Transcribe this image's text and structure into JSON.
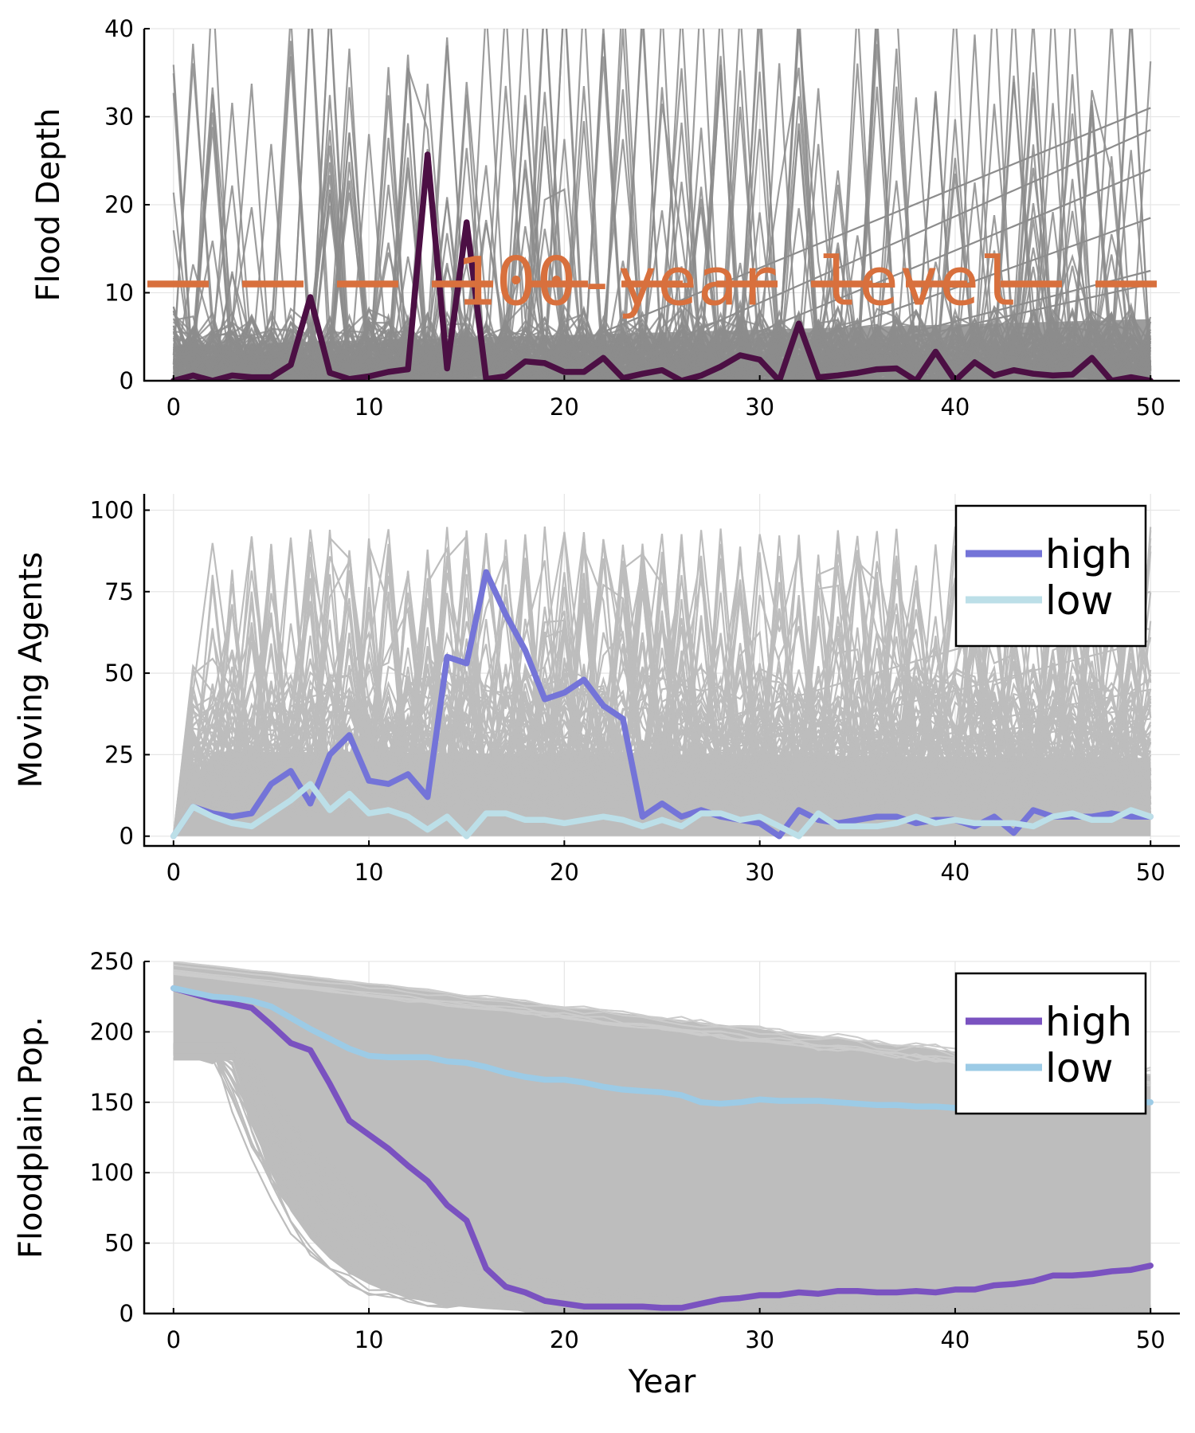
{
  "colors": {
    "ensemble_top": "#8c8c8c",
    "ensemble": "#bdbdbd",
    "flood_highlight": "#4c0f44",
    "threshold": "#d8703d",
    "moving_high": "#7474d8",
    "moving_low": "#bcdfe8",
    "pop_high": "#7a52c0",
    "pop_low": "#9ccbe6",
    "grid": "#e6e6e6"
  },
  "chart_data": [
    {
      "type": "line",
      "ylabel": "Flood Depth",
      "xlabel": "",
      "xlim": [
        -1.5,
        51.5
      ],
      "ylim": [
        0,
        40
      ],
      "xticks": [
        "0",
        "10",
        "20",
        "30",
        "40",
        "50"
      ],
      "yticks": [
        "0",
        "10",
        "20",
        "30",
        "40"
      ],
      "grid": true,
      "annotation": {
        "text": "100-year level",
        "y": 11,
        "style": "dashed"
      },
      "background_ensemble": "hundreds of gray simulated flood-depth traces, mostly between 0 and 10, with spikes up to 40",
      "series": [
        {
          "x": [
            0,
            1,
            2,
            3,
            4,
            5,
            6,
            7,
            8,
            9,
            10,
            11,
            12,
            13,
            14,
            15,
            16,
            17,
            18,
            19,
            20,
            21,
            22,
            23,
            24,
            25,
            26,
            27,
            28,
            29,
            30,
            31,
            32,
            33,
            34,
            35,
            36,
            37,
            38,
            39,
            40,
            41,
            42,
            43,
            44,
            45,
            46,
            47,
            48,
            49,
            50
          ],
          "y": [
            0,
            0.6,
            0,
            0.6,
            0.4,
            0.4,
            1.8,
            9.5,
            0.9,
            0.2,
            0.5,
            1,
            1.3,
            25.7,
            1.4,
            18,
            0.2,
            0.5,
            2.2,
            2,
            1,
            1,
            2.6,
            0.3,
            0.8,
            1.2,
            0,
            0.6,
            1.6,
            2.9,
            2.4,
            0,
            6.5,
            0.4,
            0.6,
            0.9,
            1.3,
            1.4,
            0,
            3.3,
            0,
            2.1,
            0.6,
            1.2,
            0.8,
            0.6,
            0.7,
            2.6,
            0,
            0.4,
            0
          ]
        }
      ]
    },
    {
      "type": "line",
      "ylabel": "Moving Agents",
      "xlabel": "",
      "xlim": [
        -1.5,
        51.5
      ],
      "ylim": [
        -3,
        105
      ],
      "xticks": [
        "0",
        "10",
        "20",
        "30",
        "40",
        "50"
      ],
      "yticks": [
        "0",
        "25",
        "50",
        "75",
        "100"
      ],
      "grid": true,
      "legend": "top-right",
      "background_ensemble": "hundreds of light gray simulated traces, dense band 0 to 30, reaching about 100",
      "series": [
        {
          "name": "high",
          "x": [
            0,
            1,
            2,
            3,
            4,
            5,
            6,
            7,
            8,
            9,
            10,
            11,
            12,
            13,
            14,
            15,
            16,
            17,
            18,
            19,
            20,
            21,
            22,
            23,
            24,
            25,
            26,
            27,
            28,
            29,
            30,
            31,
            32,
            33,
            34,
            35,
            36,
            37,
            38,
            39,
            40,
            41,
            42,
            43,
            44,
            45,
            46,
            47,
            48,
            49,
            50
          ],
          "y": [
            0,
            9,
            7,
            6,
            7,
            16,
            20,
            10,
            25,
            31,
            17,
            16,
            19,
            12,
            55,
            53,
            81,
            68,
            57,
            42,
            44,
            48,
            40,
            36,
            6,
            10,
            6,
            8,
            6,
            5,
            4,
            0,
            8,
            5,
            4,
            5,
            6,
            6,
            4,
            5,
            5,
            3,
            6,
            1,
            8,
            6,
            6,
            6,
            7,
            6,
            6
          ]
        },
        {
          "name": "low",
          "x": [
            0,
            1,
            2,
            3,
            4,
            5,
            6,
            7,
            8,
            9,
            10,
            11,
            12,
            13,
            14,
            15,
            16,
            17,
            18,
            19,
            20,
            21,
            22,
            23,
            24,
            25,
            26,
            27,
            28,
            29,
            30,
            31,
            32,
            33,
            34,
            35,
            36,
            37,
            38,
            39,
            40,
            41,
            42,
            43,
            44,
            45,
            46,
            47,
            48,
            49,
            50
          ],
          "y": [
            0,
            9,
            6,
            4,
            3,
            7,
            11,
            16,
            8,
            13,
            7,
            8,
            6,
            2,
            6,
            0,
            7,
            7,
            5,
            5,
            4,
            5,
            6,
            5,
            3,
            5,
            3,
            7,
            7,
            5,
            6,
            3,
            0,
            7,
            3,
            3,
            3,
            4,
            6,
            4,
            5,
            4,
            4,
            4,
            3,
            6,
            7,
            5,
            5,
            8,
            6
          ]
        }
      ]
    },
    {
      "type": "line",
      "ylabel": "Floodplain Pop.",
      "xlabel": "Year",
      "xlim": [
        -1.5,
        51.5
      ],
      "ylim": [
        0,
        250
      ],
      "xticks": [
        "0",
        "10",
        "20",
        "30",
        "40",
        "50"
      ],
      "yticks": [
        "0",
        "50",
        "100",
        "150",
        "200",
        "250"
      ],
      "grid": true,
      "legend": "top-right",
      "background_ensemble": "light gray band of simulated population traces filling roughly 0 to 250, declining over time",
      "series": [
        {
          "name": "high",
          "x": [
            0,
            1,
            2,
            3,
            4,
            5,
            6,
            7,
            8,
            9,
            10,
            11,
            12,
            13,
            14,
            15,
            16,
            17,
            18,
            19,
            20,
            21,
            22,
            23,
            24,
            25,
            26,
            27,
            28,
            29,
            30,
            31,
            32,
            33,
            34,
            35,
            36,
            37,
            38,
            39,
            40,
            41,
            42,
            43,
            44,
            45,
            46,
            47,
            48,
            49,
            50
          ],
          "y": [
            231,
            227,
            223,
            220,
            217,
            205,
            192,
            187,
            163,
            137,
            127,
            117,
            105,
            94,
            77,
            66,
            32,
            19,
            15,
            9,
            7,
            5,
            5,
            5,
            5,
            4,
            4,
            7,
            10,
            11,
            13,
            13,
            15,
            14,
            16,
            16,
            15,
            15,
            16,
            15,
            17,
            17,
            20,
            21,
            23,
            27,
            27,
            28,
            30,
            31,
            34
          ]
        },
        {
          "name": "low",
          "x": [
            0,
            1,
            2,
            3,
            4,
            5,
            6,
            7,
            8,
            9,
            10,
            11,
            12,
            13,
            14,
            15,
            16,
            17,
            18,
            19,
            20,
            21,
            22,
            23,
            24,
            25,
            26,
            27,
            28,
            29,
            30,
            31,
            32,
            33,
            34,
            35,
            36,
            37,
            38,
            39,
            40,
            41,
            42,
            43,
            44,
            45,
            46,
            47,
            48,
            49,
            50
          ],
          "y": [
            231,
            228,
            225,
            224,
            222,
            218,
            210,
            202,
            195,
            188,
            183,
            182,
            182,
            182,
            179,
            178,
            175,
            171,
            168,
            166,
            166,
            164,
            161,
            159,
            158,
            157,
            155,
            150,
            149,
            150,
            152,
            151,
            151,
            151,
            150,
            149,
            148,
            148,
            147,
            147,
            146,
            147,
            147,
            148,
            148,
            148,
            149,
            149,
            149,
            150,
            150
          ]
        }
      ]
    }
  ]
}
